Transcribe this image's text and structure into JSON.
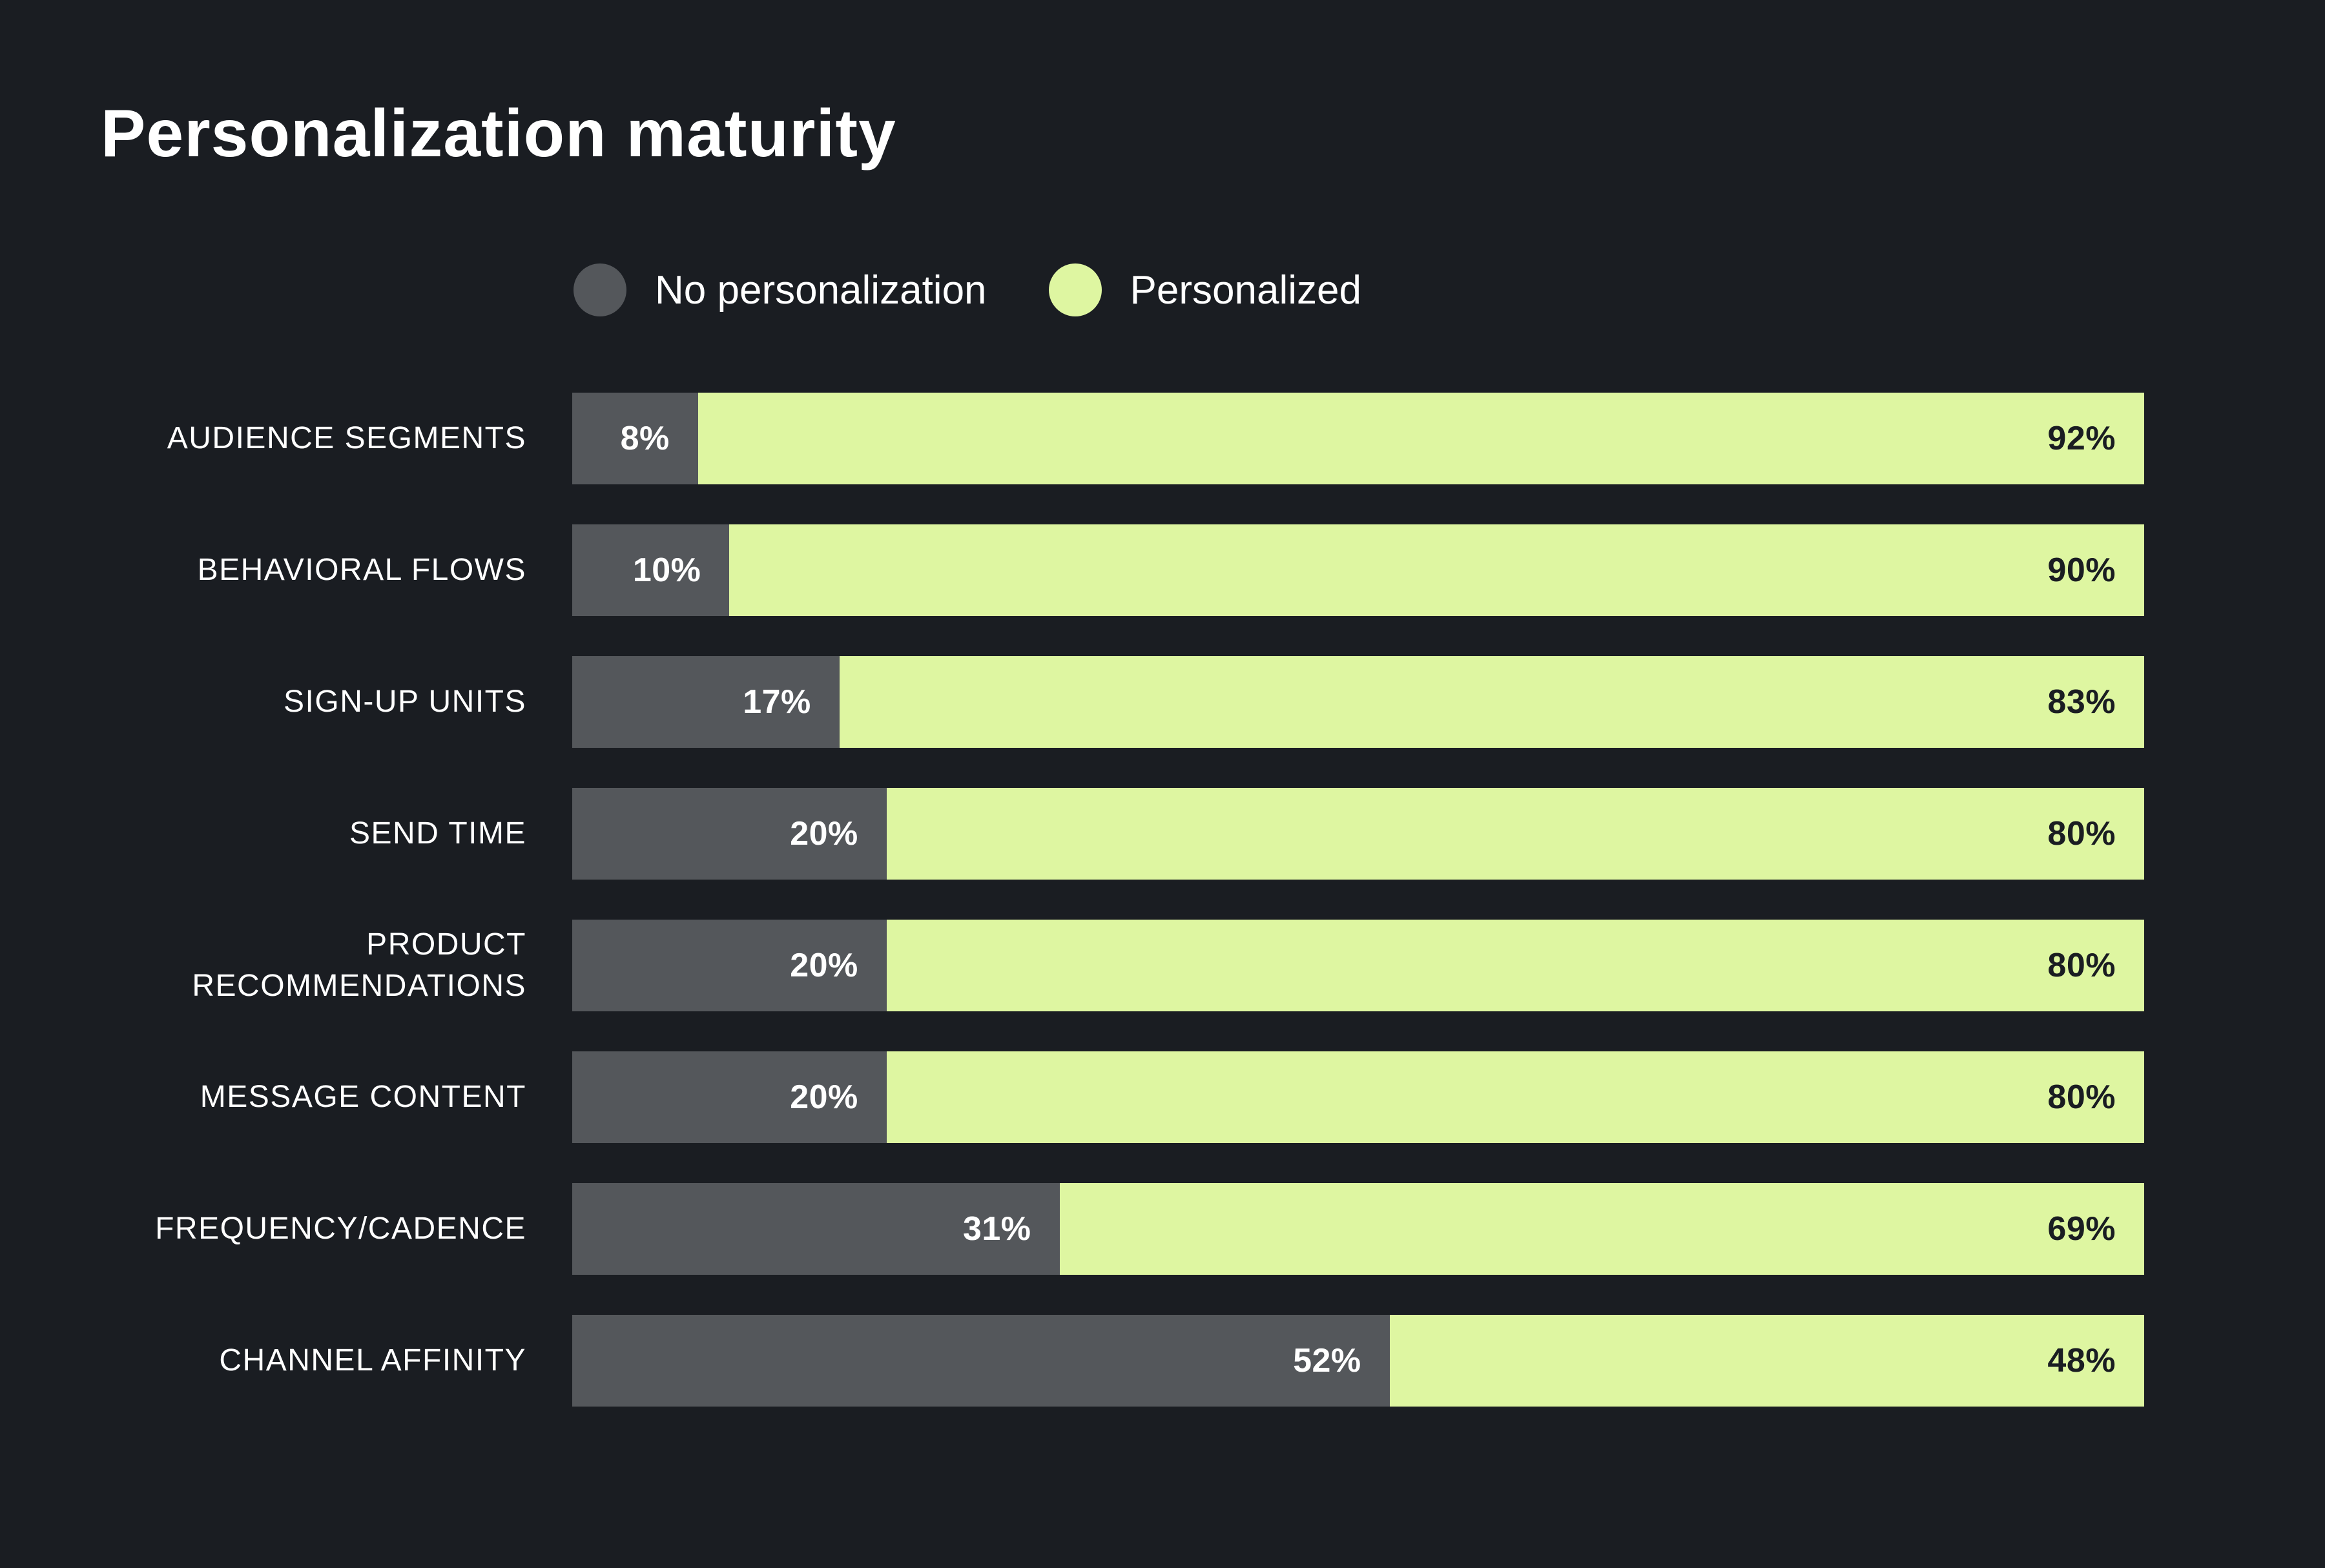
{
  "title": "Personalization maturity",
  "colors": {
    "background": "#1a1d22",
    "no_personalization": "#54575b",
    "personalized": "#def6a1",
    "text_light": "#ffffff",
    "text_dark": "#1a1d22"
  },
  "legend": [
    {
      "label": "No personalization",
      "color": "#54575b"
    },
    {
      "label": "Personalized",
      "color": "#def6a1"
    }
  ],
  "chart_data": {
    "type": "bar",
    "orientation": "horizontal-stacked",
    "title": "Personalization maturity",
    "unit": "%",
    "xlim": [
      0,
      100
    ],
    "legend_position": "top",
    "value_labels": "inside-end",
    "categories": [
      "AUDIENCE SEGMENTS",
      "BEHAVIORAL FLOWS",
      "SIGN-UP UNITS",
      "SEND TIME",
      "PRODUCT RECOMMENDATIONS",
      "MESSAGE CONTENT",
      "FREQUENCY/CADENCE",
      "CHANNEL AFFINITY"
    ],
    "series": [
      {
        "name": "No personalization",
        "color": "#54575b",
        "values": [
          8,
          10,
          17,
          20,
          20,
          20,
          31,
          52
        ]
      },
      {
        "name": "Personalized",
        "color": "#def6a1",
        "values": [
          92,
          90,
          83,
          80,
          80,
          80,
          69,
          48
        ]
      }
    ]
  },
  "rows": [
    {
      "label": "AUDIENCE SEGMENTS",
      "no_personalization": 8,
      "personalized": 92,
      "left_label": "8%",
      "right_label": "92%"
    },
    {
      "label": "BEHAVIORAL FLOWS",
      "no_personalization": 10,
      "personalized": 90,
      "left_label": "10%",
      "right_label": "90%"
    },
    {
      "label": "SIGN-UP UNITS",
      "no_personalization": 17,
      "personalized": 83,
      "left_label": "17%",
      "right_label": "83%"
    },
    {
      "label": "SEND TIME",
      "no_personalization": 20,
      "personalized": 80,
      "left_label": "20%",
      "right_label": "80%"
    },
    {
      "label": "PRODUCT RECOMMENDATIONS",
      "no_personalization": 20,
      "personalized": 80,
      "left_label": "20%",
      "right_label": "80%"
    },
    {
      "label": "MESSAGE CONTENT",
      "no_personalization": 20,
      "personalized": 80,
      "left_label": "20%",
      "right_label": "80%"
    },
    {
      "label": "FREQUENCY/CADENCE",
      "no_personalization": 31,
      "personalized": 69,
      "left_label": "31%",
      "right_label": "69%"
    },
    {
      "label": "CHANNEL AFFINITY",
      "no_personalization": 52,
      "personalized": 48,
      "left_label": "52%",
      "right_label": "48%"
    }
  ]
}
